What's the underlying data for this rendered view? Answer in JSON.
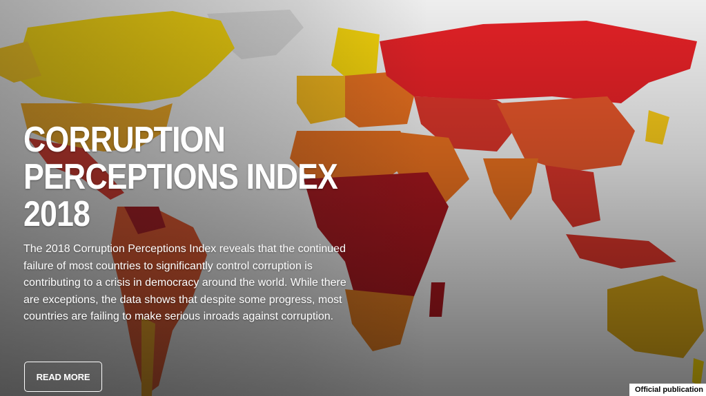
{
  "hero": {
    "title_lines": [
      "CORRUPTION",
      "PERCEPTIONS INDEX",
      "2018"
    ],
    "description": "The 2018 Corruption Perceptions Index reveals that the continued failure of most countries to significantly control corruption is contributing to a crisis in democracy around the world. While there are exceptions, the data shows that despite some progress, most countries are failing to make serious inroads against corruption.",
    "button_label": "READ MORE"
  },
  "badge": {
    "label": "Official publication"
  },
  "colors": {
    "very_clean": "#f5d40a",
    "clean": "#f0a21c",
    "moderate": "#e8701f",
    "corrupt": "#d8352a",
    "very_corrupt": "#a8171e",
    "no_data": "#d9d9d9",
    "water": "#eeeeee"
  }
}
